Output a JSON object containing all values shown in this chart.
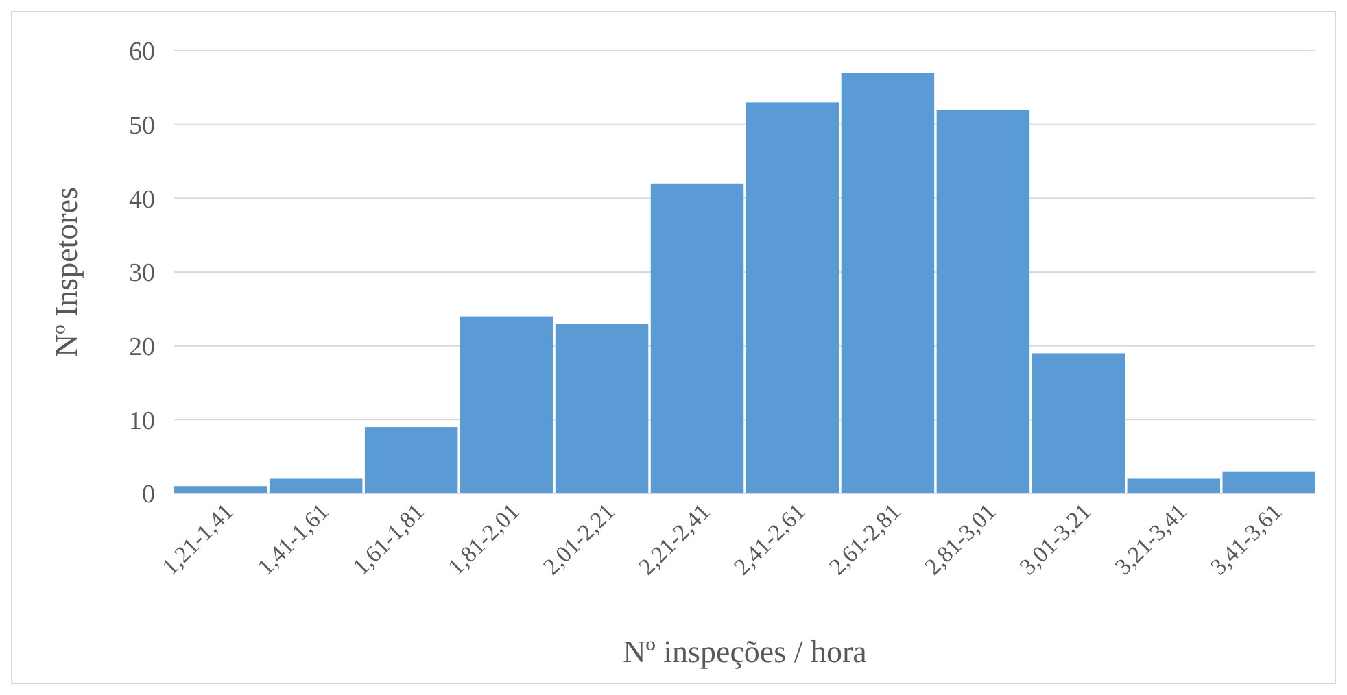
{
  "chart_data": {
    "type": "bar",
    "xlabel": "Nº inspeções / hora",
    "ylabel": "Nº Inspetores",
    "categories": [
      "1,21-1,41",
      "1,41-1,61",
      "1,61-1,81",
      "1,81-2,01",
      "2,01-2,21",
      "2,21-2,41",
      "2,41-2,61",
      "2,61-2,81",
      "2,81-3,01",
      "3,01-3,21",
      "3,21-3,41",
      "3,41-3,61"
    ],
    "values": [
      1,
      2,
      9,
      24,
      23,
      42,
      53,
      57,
      52,
      19,
      2,
      3
    ],
    "color": "#5b9bd5",
    "ylim": [
      0,
      60
    ],
    "yticks": [
      0,
      10,
      20,
      30,
      40,
      50,
      60
    ],
    "grid": "y"
  }
}
